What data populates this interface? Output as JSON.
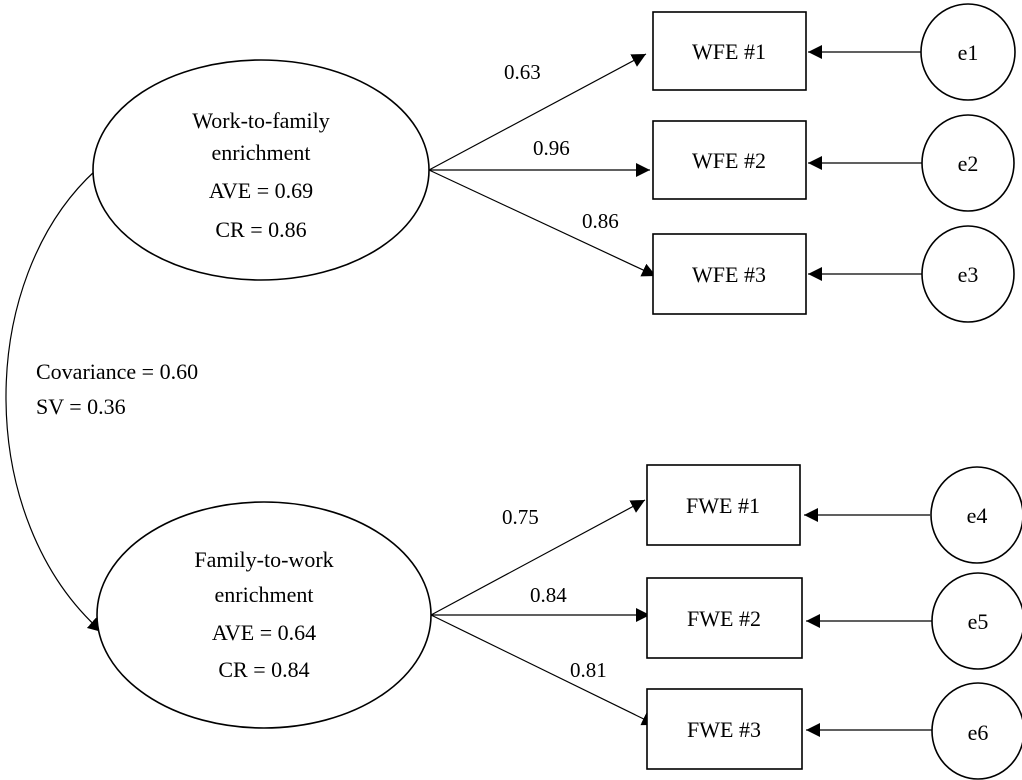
{
  "constructs": [
    {
      "lines": [
        "Work-to-family",
        "enrichment",
        "AVE = 0.69",
        "CR = 0.86"
      ],
      "indicators": [
        {
          "label": "WFE #1",
          "loading": "0.63",
          "error": "e1"
        },
        {
          "label": "WFE #2",
          "loading": "0.96",
          "error": "e2"
        },
        {
          "label": "WFE #3",
          "loading": "0.86",
          "error": "e3"
        }
      ]
    },
    {
      "lines": [
        "Family-to-work",
        "enrichment",
        "AVE = 0.64",
        "CR = 0.84"
      ],
      "indicators": [
        {
          "label": "FWE #1",
          "loading": "0.75",
          "error": "e4"
        },
        {
          "label": "FWE #2",
          "loading": "0.84",
          "error": "e5"
        },
        {
          "label": "FWE #3",
          "loading": "0.81",
          "error": "e6"
        }
      ]
    }
  ],
  "covariance": {
    "lines": [
      "Covariance = 0.60",
      "SV = 0.36"
    ]
  }
}
